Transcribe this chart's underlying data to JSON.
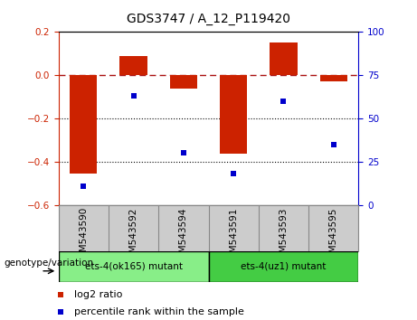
{
  "title": "GDS3747 / A_12_P119420",
  "samples": [
    "GSM543590",
    "GSM543592",
    "GSM543594",
    "GSM543591",
    "GSM543593",
    "GSM543595"
  ],
  "log2_ratio": [
    -0.455,
    0.09,
    -0.06,
    -0.365,
    0.15,
    -0.03
  ],
  "percentile_rank": [
    11,
    63,
    30,
    18,
    60,
    35
  ],
  "bar_color": "#cc2200",
  "dot_color": "#0000cc",
  "ylim_left": [
    -0.6,
    0.2
  ],
  "ylim_right": [
    0,
    100
  ],
  "yticks_left": [
    0.2,
    0.0,
    -0.2,
    -0.4,
    -0.6
  ],
  "yticks_right": [
    100,
    75,
    50,
    25,
    0
  ],
  "groups": [
    {
      "label": "ets-4(ok165) mutant",
      "indices": [
        0,
        1,
        2
      ],
      "color": "#88ee88"
    },
    {
      "label": "ets-4(uz1) mutant",
      "indices": [
        3,
        4,
        5
      ],
      "color": "#44cc44"
    }
  ],
  "group_label": "genotype/variation",
  "legend_items": [
    {
      "label": "log2 ratio",
      "color": "#cc2200"
    },
    {
      "label": "percentile rank within the sample",
      "color": "#0000cc"
    }
  ],
  "hline_y": 0.0,
  "hline_color": "#aa1111",
  "dot_gridlines": [
    -0.2,
    -0.4
  ],
  "bar_width": 0.55,
  "background_color": "#ffffff",
  "xtick_bg": "#cccccc",
  "xtick_border": "#888888",
  "group_border": "#000000",
  "title_fontsize": 10,
  "tick_fontsize": 7.5,
  "label_fontsize": 7.5,
  "legend_fontsize": 8
}
